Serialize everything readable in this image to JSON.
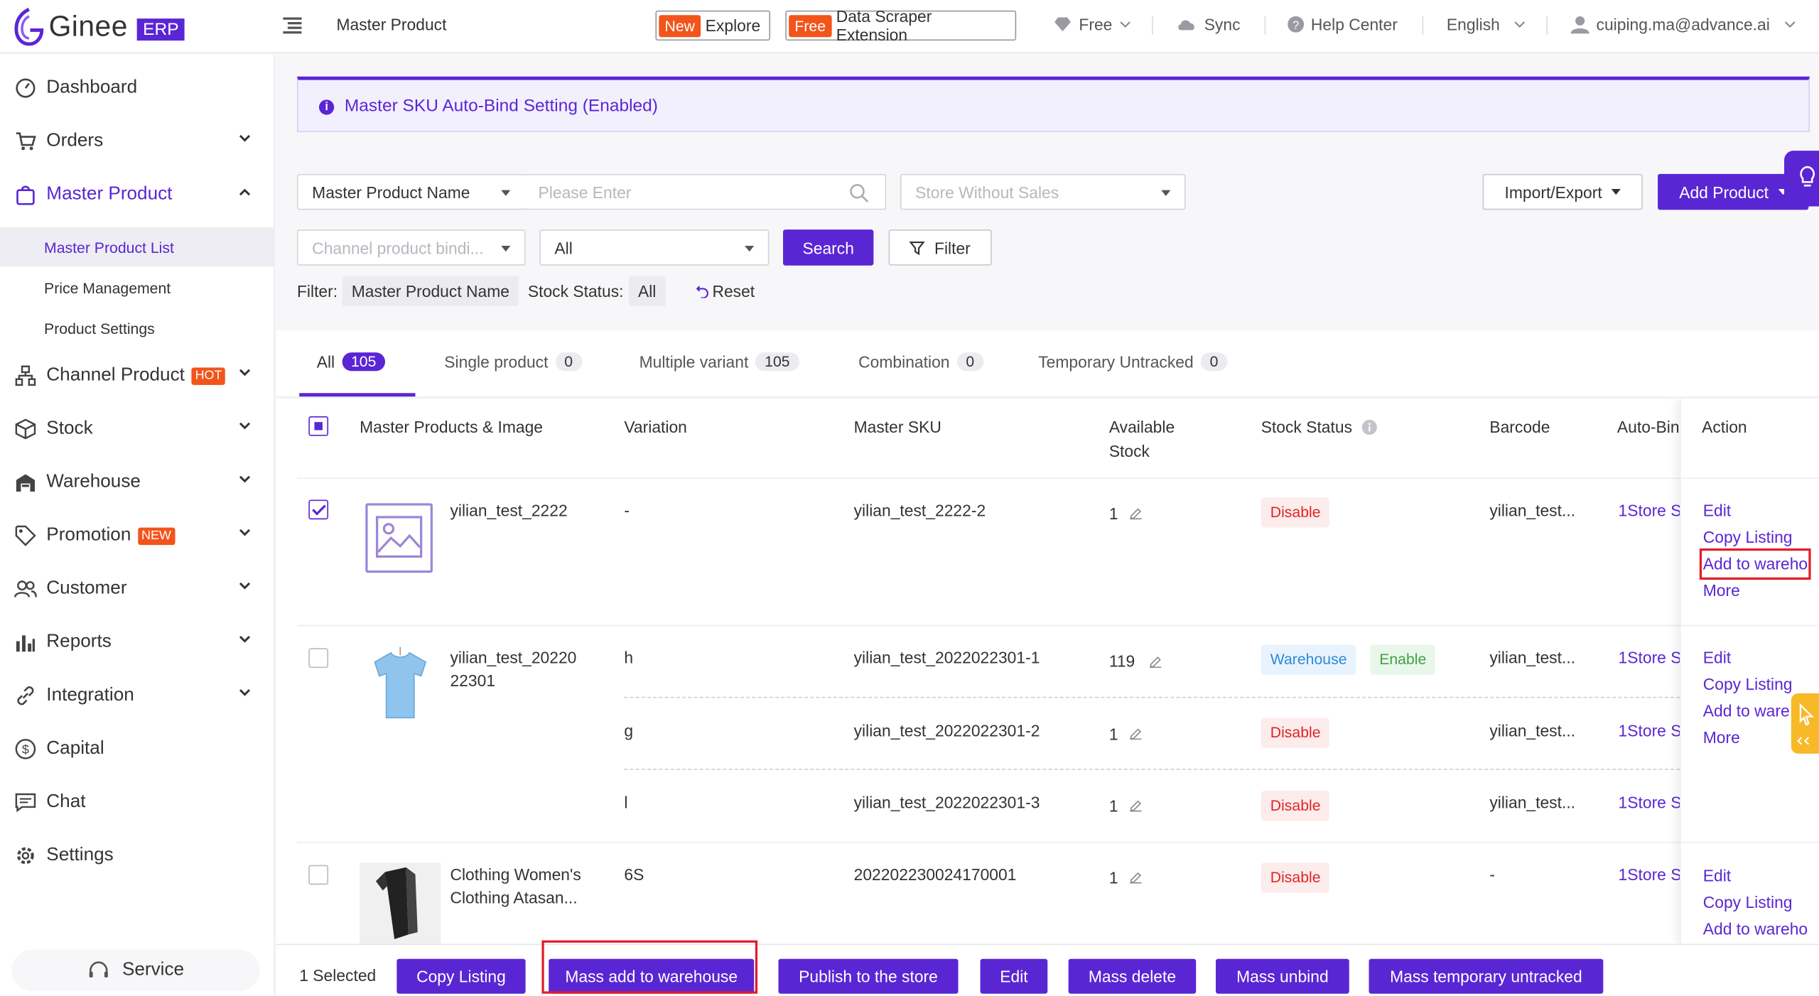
{
  "topbar": {
    "brand": "Ginee",
    "brand_badge": "ERP",
    "breadcrumb": "Master Product",
    "explore_tag": "New",
    "explore_label": "Explore",
    "scraper_tag": "Free",
    "scraper_label": "Data Scraper Extension",
    "plan": "Free",
    "sync": "Sync",
    "help": "Help Center",
    "language": "English",
    "user": "cuiping.ma@advance.ai"
  },
  "sidebar": {
    "items": [
      {
        "label": "Dashboard"
      },
      {
        "label": "Orders"
      },
      {
        "label": "Master Product"
      },
      {
        "label": "Channel Product",
        "badge": "HOT"
      },
      {
        "label": "Stock"
      },
      {
        "label": "Warehouse"
      },
      {
        "label": "Promotion",
        "badge": "NEW"
      },
      {
        "label": "Customer"
      },
      {
        "label": "Reports"
      },
      {
        "label": "Integration"
      },
      {
        "label": "Capital"
      },
      {
        "label": "Chat"
      },
      {
        "label": "Settings"
      }
    ],
    "subitems": [
      "Master Product List",
      "Price Management",
      "Product Settings"
    ],
    "service": "Service"
  },
  "banner": {
    "text": "Master SKU Auto-Bind Setting (Enabled)"
  },
  "filters": {
    "field_select": "Master Product Name",
    "search_placeholder": "Please Enter",
    "store_placeholder": "Store Without Sales",
    "channel_placeholder": "Channel product bindi...",
    "all_select": "All",
    "search_button": "Search",
    "filter_button": "Filter",
    "import_export": "Import/Export",
    "add_product": "Add Product",
    "active_label": "Filter:",
    "active_chip": "Master Product Name",
    "stock_label": "Stock Status:",
    "stock_chip": "All",
    "reset": "Reset"
  },
  "tabs": [
    {
      "label": "All",
      "count": "105"
    },
    {
      "label": "Single product",
      "count": "0"
    },
    {
      "label": "Multiple variant",
      "count": "105"
    },
    {
      "label": "Combination",
      "count": "0"
    },
    {
      "label": "Temporary Untracked",
      "count": "0"
    }
  ],
  "table": {
    "headers": {
      "product": "Master Products & Image",
      "variation": "Variation",
      "sku": "Master SKU",
      "stock_l1": "Available",
      "stock_l2": "Stock",
      "status": "Stock Status",
      "barcode": "Barcode",
      "autobind": "Auto-Bin",
      "action": "Action"
    },
    "products": [
      {
        "name_l1": "yilian_test_2222",
        "name_l2": "",
        "variants": [
          {
            "variation": "-",
            "sku": "yilian_test_2222-2",
            "stock": "1",
            "status": [
              "Disable"
            ],
            "barcode": "yilian_test...",
            "autobind": "1Store S"
          }
        ],
        "actions": [
          "Edit",
          "Copy Listing",
          "Add to wareho",
          "More"
        ]
      },
      {
        "name_l1": "yilian_test_20220",
        "name_l2": "22301",
        "variants": [
          {
            "variation": "h",
            "sku": "yilian_test_2022022301-1",
            "stock": "119",
            "status": [
              "Warehouse",
              "Enable"
            ],
            "barcode": "yilian_test...",
            "autobind": "1Store S"
          },
          {
            "variation": "g",
            "sku": "yilian_test_2022022301-2",
            "stock": "1",
            "status": [
              "Disable"
            ],
            "barcode": "yilian_test...",
            "autobind": "1Store S"
          },
          {
            "variation": "l",
            "sku": "yilian_test_2022022301-3",
            "stock": "1",
            "status": [
              "Disable"
            ],
            "barcode": "yilian_test...",
            "autobind": "1Store S"
          }
        ],
        "actions": [
          "Edit",
          "Copy Listing",
          "Add to ware",
          "More"
        ]
      },
      {
        "name_l1": "Clothing Women's",
        "name_l2": "Clothing Atasan...",
        "variants": [
          {
            "variation": "6S",
            "sku": "202202230024170001",
            "stock": "1",
            "status": [
              "Disable"
            ],
            "barcode": "-",
            "autobind": "1Store S"
          }
        ],
        "actions": [
          "Edit",
          "Copy Listing",
          "Add to wareho"
        ]
      }
    ]
  },
  "bottom": {
    "selected": "1 Selected",
    "buttons": [
      "Copy Listing",
      "Mass add to warehouse",
      "Publish to the store",
      "Edit",
      "Mass delete",
      "Mass unbind",
      "Mass temporary untracked"
    ]
  },
  "colors": {
    "accent": "#5a26d4",
    "danger": "#e02424",
    "hot": "#f2541b",
    "highlight_box": "#e01f2a"
  }
}
